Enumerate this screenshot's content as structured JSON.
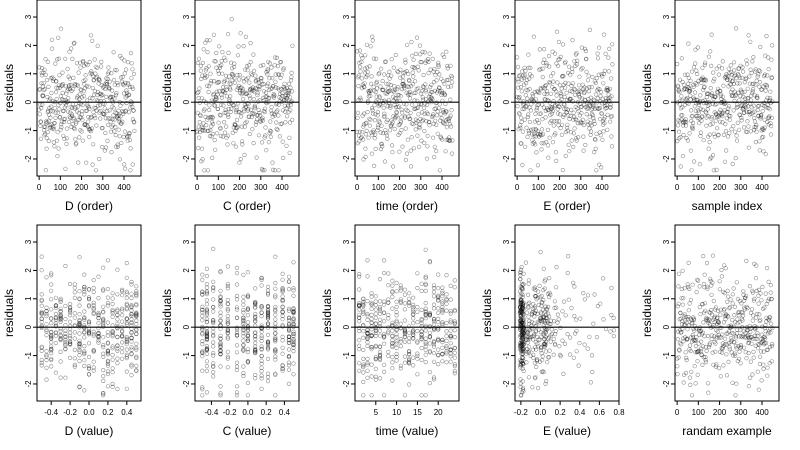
{
  "chart_data": [
    {
      "type": "scatter",
      "xlabel": "D (order)",
      "ylabel": "residuals",
      "xlim": [
        -10,
        480
      ],
      "ylim": [
        -2.6,
        3.6
      ],
      "xticks": [
        0,
        100,
        200,
        300,
        400
      ],
      "yticks": [
        -2,
        -1,
        0,
        1,
        2,
        3
      ],
      "hline": 0,
      "n_points": 450,
      "x_kind": "index",
      "seed": 11
    },
    {
      "type": "scatter",
      "xlabel": "C (order)",
      "ylabel": "residuals",
      "xlim": [
        -10,
        480
      ],
      "ylim": [
        -2.6,
        3.6
      ],
      "xticks": [
        0,
        100,
        200,
        300,
        400
      ],
      "yticks": [
        -2,
        -1,
        0,
        1,
        2,
        3
      ],
      "hline": 0,
      "n_points": 450,
      "x_kind": "index",
      "seed": 23
    },
    {
      "type": "scatter",
      "xlabel": "time (order)",
      "ylabel": "residuals",
      "xlim": [
        -10,
        480
      ],
      "ylim": [
        -2.6,
        3.6
      ],
      "xticks": [
        0,
        100,
        200,
        300,
        400
      ],
      "yticks": [
        -2,
        -1,
        0,
        1,
        2,
        3
      ],
      "hline": 0,
      "n_points": 450,
      "x_kind": "index",
      "seed": 37
    },
    {
      "type": "scatter",
      "xlabel": "E (order)",
      "ylabel": "residuals",
      "xlim": [
        -10,
        480
      ],
      "ylim": [
        -2.6,
        3.6
      ],
      "xticks": [
        0,
        100,
        200,
        300,
        400
      ],
      "yticks": [
        -2,
        -1,
        0,
        1,
        2,
        3
      ],
      "hline": 0,
      "n_points": 450,
      "x_kind": "index",
      "seed": 41
    },
    {
      "type": "scatter",
      "xlabel": "sample index",
      "ylabel": "residuals",
      "xlim": [
        -10,
        480
      ],
      "ylim": [
        -2.6,
        3.6
      ],
      "xticks": [
        0,
        100,
        200,
        300,
        400
      ],
      "yticks": [
        -2,
        -1,
        0,
        1,
        2,
        3
      ],
      "hline": 0,
      "n_points": 450,
      "x_kind": "index",
      "seed": 53
    },
    {
      "type": "scatter",
      "xlabel": "D (value)",
      "ylabel": "residuals",
      "xlim": [
        -0.55,
        0.55
      ],
      "ylim": [
        -2.6,
        3.6
      ],
      "xticks": [
        -0.4,
        -0.2,
        0.0,
        0.2,
        0.4
      ],
      "xtick_labels": [
        "-0.4",
        "-0.2",
        "0.0",
        "0.2",
        "0.4"
      ],
      "yticks": [
        -2,
        -1,
        0,
        1,
        2,
        3
      ],
      "hline": 0,
      "n_points": 450,
      "x_kind": "discrete",
      "x_levels": [
        -0.5,
        -0.45,
        -0.4,
        -0.35,
        -0.3,
        -0.25,
        -0.2,
        -0.15,
        -0.1,
        -0.05,
        0.0,
        0.05,
        0.1,
        0.15,
        0.2,
        0.25,
        0.3,
        0.35,
        0.4,
        0.45,
        0.5
      ],
      "seed": 61
    },
    {
      "type": "scatter",
      "xlabel": "C (value)",
      "ylabel": "residuals",
      "xlim": [
        -0.58,
        0.56
      ],
      "ylim": [
        -2.6,
        3.6
      ],
      "xticks": [
        -0.4,
        -0.2,
        0.0,
        0.2,
        0.4
      ],
      "xtick_labels": [
        "-0.4",
        "-0.2",
        "0.0",
        "0.2",
        "0.4"
      ],
      "yticks": [
        -2,
        -1,
        0,
        1,
        2,
        3
      ],
      "hline": 0,
      "n_points": 450,
      "x_kind": "discrete",
      "x_levels": [
        -0.5,
        -0.45,
        -0.38,
        -0.3,
        -0.22,
        -0.12,
        -0.05,
        0.0,
        0.08,
        0.15,
        0.22,
        0.3,
        0.38,
        0.45,
        0.5
      ],
      "seed": 71
    },
    {
      "type": "scatter",
      "xlabel": "time (value)",
      "ylabel": "residuals",
      "xlim": [
        0,
        25
      ],
      "ylim": [
        -2.6,
        3.6
      ],
      "xticks": [
        5,
        10,
        15,
        20
      ],
      "yticks": [
        -2,
        -1,
        0,
        1,
        2,
        3
      ],
      "hline": 0,
      "n_points": 450,
      "x_kind": "discrete",
      "x_levels": [
        1,
        2,
        3,
        4,
        5,
        6,
        7,
        8,
        9,
        10,
        11,
        12,
        13,
        14,
        15,
        16,
        17,
        18,
        19,
        20,
        21,
        22,
        23,
        24
      ],
      "seed": 83
    },
    {
      "type": "scatter",
      "xlabel": "E (value)",
      "ylabel": "residuals",
      "xlim": [
        -0.26,
        0.8
      ],
      "ylim": [
        -2.6,
        3.6
      ],
      "xticks": [
        -0.2,
        0.0,
        0.2,
        0.4,
        0.6,
        0.8
      ],
      "xtick_labels": [
        "-0.2",
        "0.0",
        "0.2",
        "0.4",
        "0.6",
        "0.8"
      ],
      "yticks": [
        -2,
        -1,
        0,
        1,
        2,
        3
      ],
      "hline": 0,
      "n_points": 450,
      "x_kind": "skewed",
      "seed": 97
    },
    {
      "type": "scatter",
      "xlabel": "randam example",
      "ylabel": "residuals",
      "xlim": [
        -10,
        480
      ],
      "ylim": [
        -2.6,
        3.6
      ],
      "xticks": [
        0,
        100,
        200,
        300,
        400
      ],
      "yticks": [
        -2,
        -1,
        0,
        1,
        2,
        3
      ],
      "hline": 0,
      "n_points": 450,
      "x_kind": "index",
      "seed": 103
    }
  ],
  "colors": {
    "point": "#000000",
    "frame": "#000000",
    "background": "#ffffff"
  }
}
